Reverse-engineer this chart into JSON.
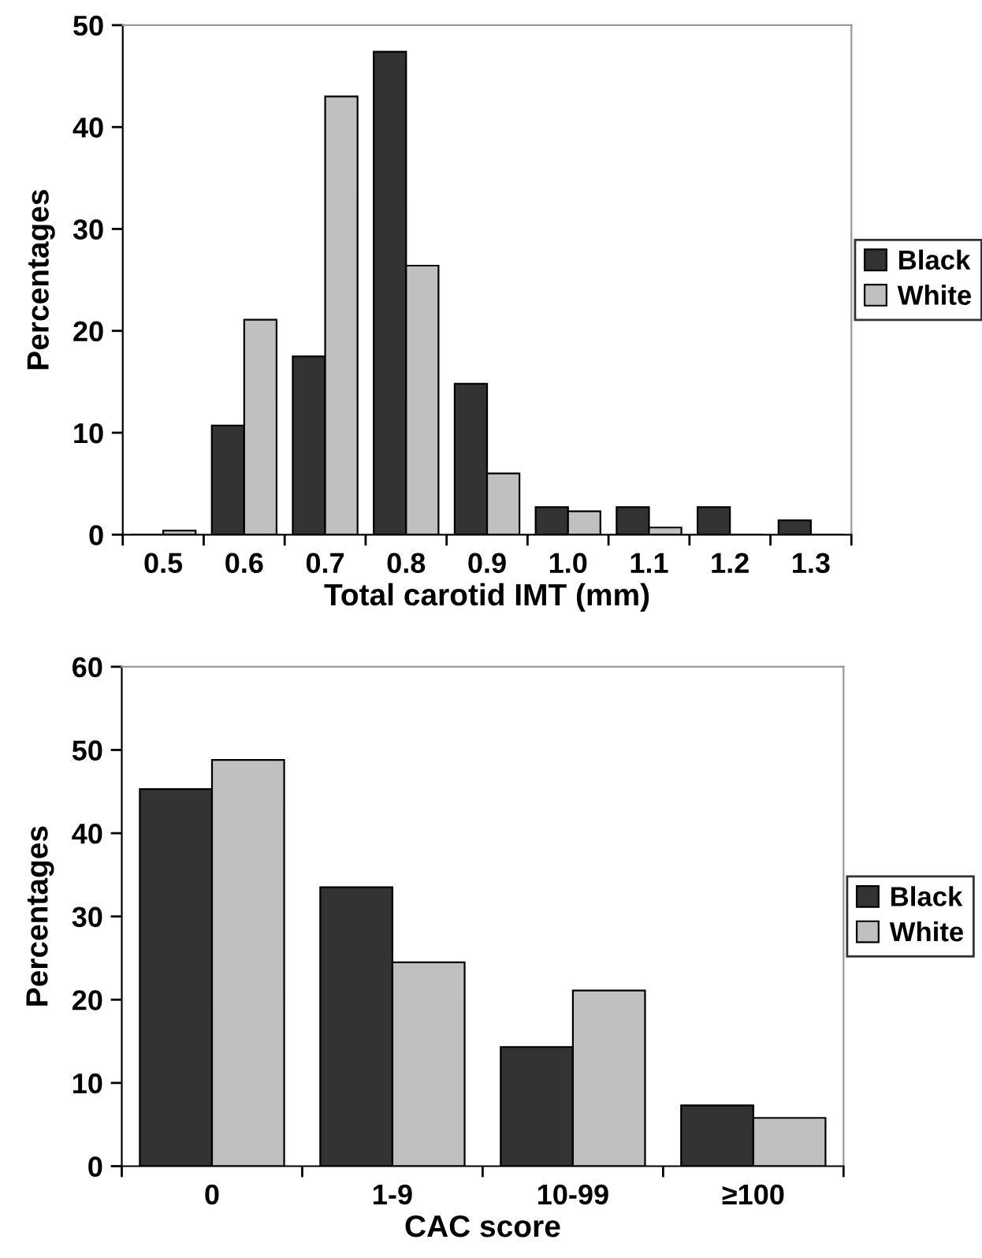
{
  "chart_data": [
    {
      "type": "bar",
      "xlabel": "Total carotid IMT (mm)",
      "ylabel": "Percentages",
      "categories": [
        "0.5",
        "0.6",
        "0.7",
        "0.8",
        "0.9",
        "1.0",
        "1.1",
        "1.2",
        "1.3"
      ],
      "series": [
        {
          "name": "Black",
          "color": "#333333",
          "values": [
            0,
            10.7,
            17.5,
            47.4,
            14.8,
            2.7,
            2.7,
            2.7,
            1.4
          ]
        },
        {
          "name": "White",
          "color": "#c0c0c0",
          "values": [
            0.4,
            21.1,
            43.0,
            26.4,
            6.0,
            2.3,
            0.7,
            0,
            0
          ]
        }
      ],
      "ylim": [
        0,
        50
      ],
      "yticks": [
        0,
        10,
        20,
        30,
        40,
        50
      ],
      "grid": false,
      "legend": "right"
    },
    {
      "type": "bar",
      "xlabel": "CAC score",
      "ylabel": "Percentages",
      "categories": [
        "0",
        "1-9",
        "10-99",
        "≥100"
      ],
      "series": [
        {
          "name": "Black",
          "color": "#333333",
          "values": [
            45.3,
            33.5,
            14.3,
            7.3
          ]
        },
        {
          "name": "White",
          "color": "#c0c0c0",
          "values": [
            48.8,
            24.5,
            21.1,
            5.8
          ]
        }
      ],
      "ylim": [
        0,
        60
      ],
      "yticks": [
        0,
        10,
        20,
        30,
        40,
        50,
        60
      ],
      "grid": false,
      "legend": "right"
    }
  ]
}
